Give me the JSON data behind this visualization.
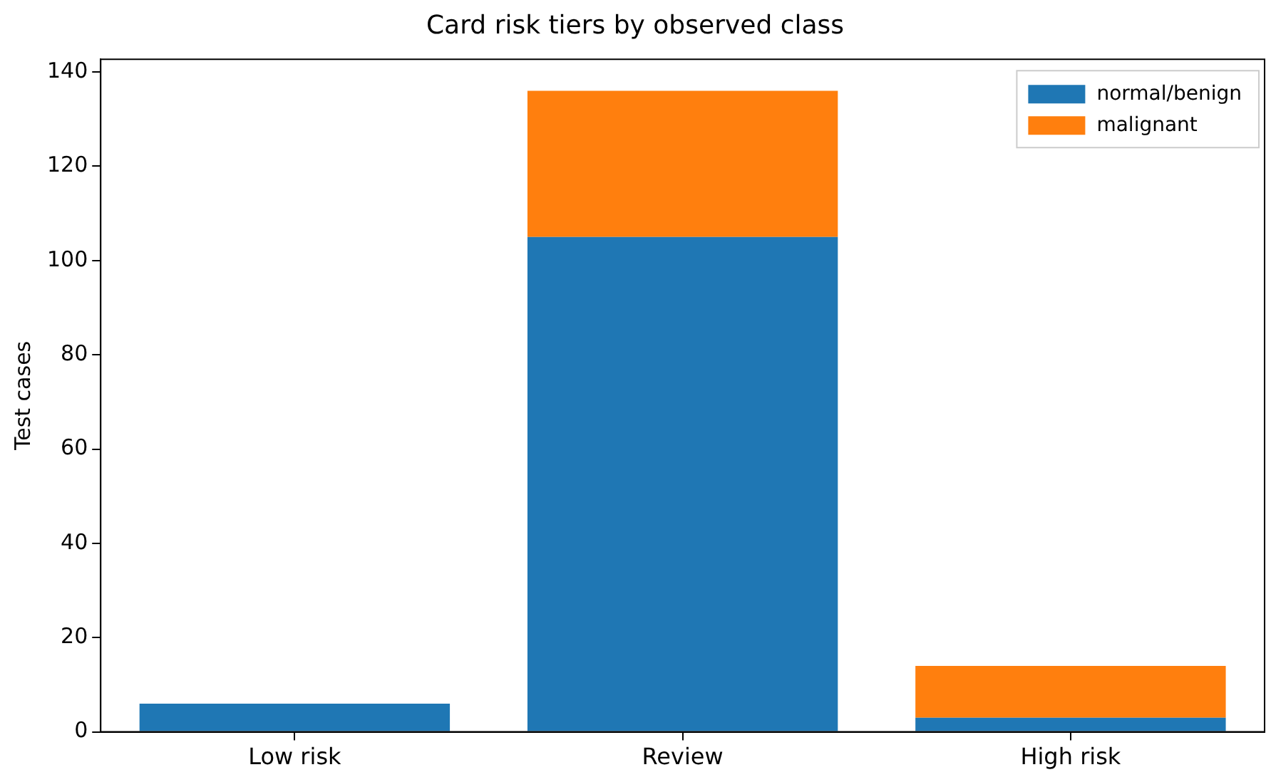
{
  "chart_data": {
    "type": "bar",
    "title": "Card risk tiers by observed class",
    "ylabel": "Test cases",
    "categories": [
      "Low risk",
      "Review",
      "High risk"
    ],
    "series": [
      {
        "name": "normal/benign",
        "color": "#1f77b4",
        "values": [
          6,
          105,
          3
        ]
      },
      {
        "name": "malignant",
        "color": "#ff7f0e",
        "values": [
          0,
          31,
          11
        ]
      }
    ],
    "stacked": true,
    "ylim": [
      0,
      142.7
    ],
    "yticks": [
      0,
      20,
      40,
      60,
      80,
      100,
      120,
      140
    ],
    "grid": false,
    "legend": "top right"
  }
}
